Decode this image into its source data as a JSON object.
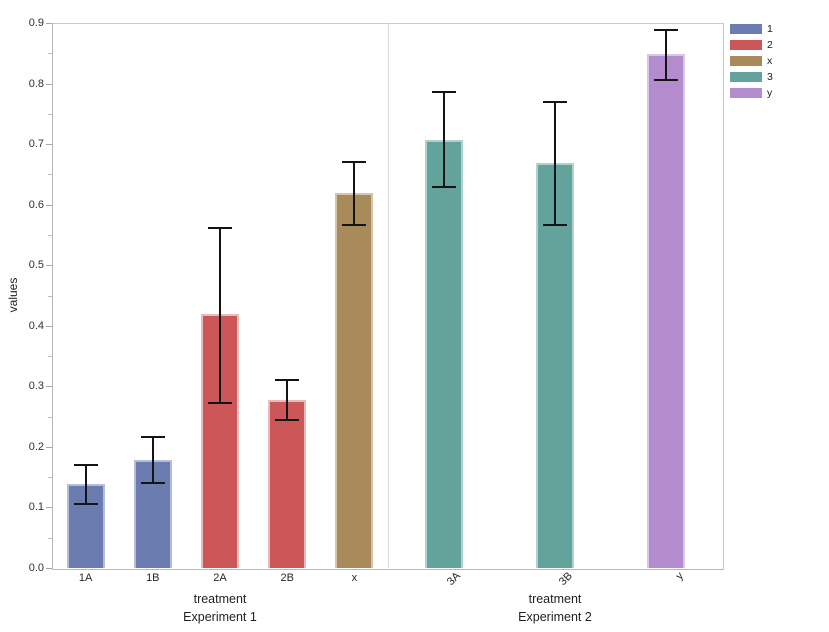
{
  "chart_data": {
    "type": "bar",
    "title": "",
    "y_axis": {
      "label": "values",
      "min": 0.0,
      "max": 0.9,
      "tick_labels": [
        "0.0",
        "0.1",
        "0.2",
        "0.3",
        "0.4",
        "0.5",
        "0.6",
        "0.7",
        "0.8",
        "0.9"
      ],
      "tick_values": [
        0.0,
        0.1,
        0.2,
        0.3,
        0.4,
        0.5,
        0.6,
        0.7,
        0.8,
        0.9
      ],
      "minor_tick_values": [
        0.05,
        0.15,
        0.25,
        0.35,
        0.45,
        0.55,
        0.65,
        0.75,
        0.85
      ],
      "grid": false
    },
    "groups": [
      {
        "facet_label": "Experiment 1",
        "axis_label": "treatment",
        "tick_rotation": 0,
        "bars": [
          {
            "label": "1A",
            "series": "1",
            "value": 0.138,
            "err_low": 0.105,
            "err_high": 0.17
          },
          {
            "label": "1B",
            "series": "1",
            "value": 0.178,
            "err_low": 0.14,
            "err_high": 0.216
          },
          {
            "label": "2A",
            "series": "2",
            "value": 0.419,
            "err_low": 0.273,
            "err_high": 0.562
          },
          {
            "label": "2B",
            "series": "2",
            "value": 0.277,
            "err_low": 0.244,
            "err_high": 0.31
          },
          {
            "label": "x",
            "series": "x",
            "value": 0.619,
            "err_low": 0.566,
            "err_high": 0.671
          }
        ]
      },
      {
        "facet_label": "Experiment 2",
        "axis_label": "treatment",
        "tick_rotation": 45,
        "bars": [
          {
            "label": "3A",
            "series": "3",
            "value": 0.707,
            "err_low": 0.63,
            "err_high": 0.786
          },
          {
            "label": "3B",
            "series": "3",
            "value": 0.668,
            "err_low": 0.566,
            "err_high": 0.77
          },
          {
            "label": "y",
            "series": "y",
            "value": 0.848,
            "err_low": 0.806,
            "err_high": 0.888
          }
        ]
      }
    ],
    "legend": {
      "position": "top-right",
      "entries": [
        {
          "label": "1",
          "series": "1"
        },
        {
          "label": "2",
          "series": "2"
        },
        {
          "label": "x",
          "series": "x"
        },
        {
          "label": "3",
          "series": "3"
        },
        {
          "label": "y",
          "series": "y"
        }
      ]
    },
    "series_colors": {
      "1": "#6b7cb0",
      "2": "#cb5758",
      "x": "#a98a5b",
      "3": "#63a39c",
      "y": "#b38cce"
    },
    "series_edge_colors": {
      "1": "#b5bdd7",
      "2": "#e5bbbb",
      "x": "#d4c5ad",
      "3": "#b1d1ce",
      "y": "#d9c5e7"
    },
    "error_bar_color": "#141414"
  }
}
